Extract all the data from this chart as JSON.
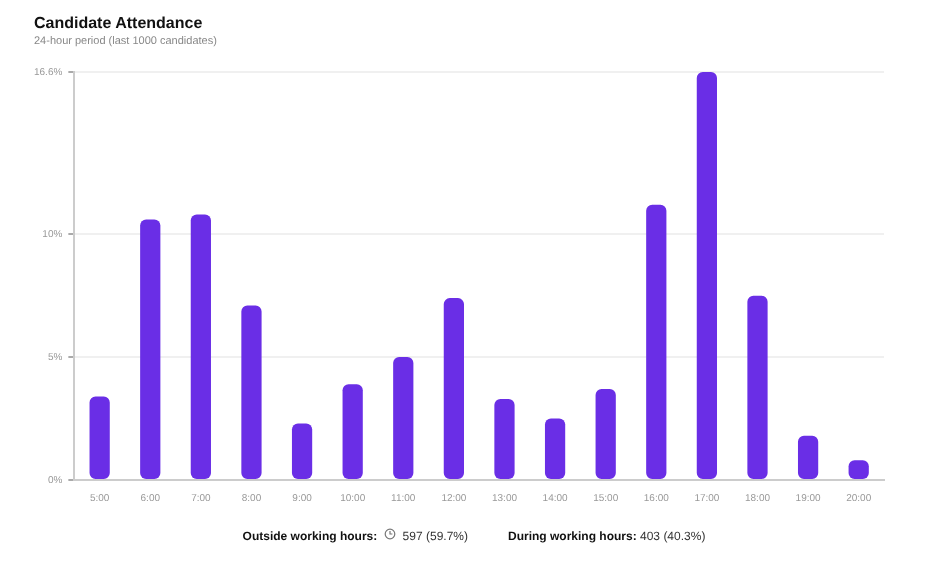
{
  "chart_data": {
    "type": "bar",
    "title": "Candidate Attendance",
    "subtitle": "24-hour period (last 1000 candidates)",
    "categories": [
      "5:00",
      "6:00",
      "7:00",
      "8:00",
      "9:00",
      "10:00",
      "11:00",
      "12:00",
      "13:00",
      "14:00",
      "15:00",
      "16:00",
      "17:00",
      "18:00",
      "19:00",
      "20:00"
    ],
    "values": [
      3.4,
      10.6,
      10.8,
      7.1,
      2.3,
      3.9,
      5.0,
      7.4,
      3.3,
      2.5,
      3.7,
      11.2,
      16.6,
      7.5,
      1.8,
      0.8
    ],
    "color": "#6a2ee6",
    "ylim": [
      0,
      16.6
    ],
    "yticks": [
      {
        "value": 0,
        "label": "0%"
      },
      {
        "value": 5,
        "label": "5%"
      },
      {
        "value": 10,
        "label": "10%"
      },
      {
        "value": 16.6,
        "label": "16.6%"
      }
    ],
    "grid": "y",
    "legend": false,
    "annotations": [
      "Outside working hours: 597 (59.7%)",
      "During working hours: 403 (40.3%)"
    ]
  }
}
